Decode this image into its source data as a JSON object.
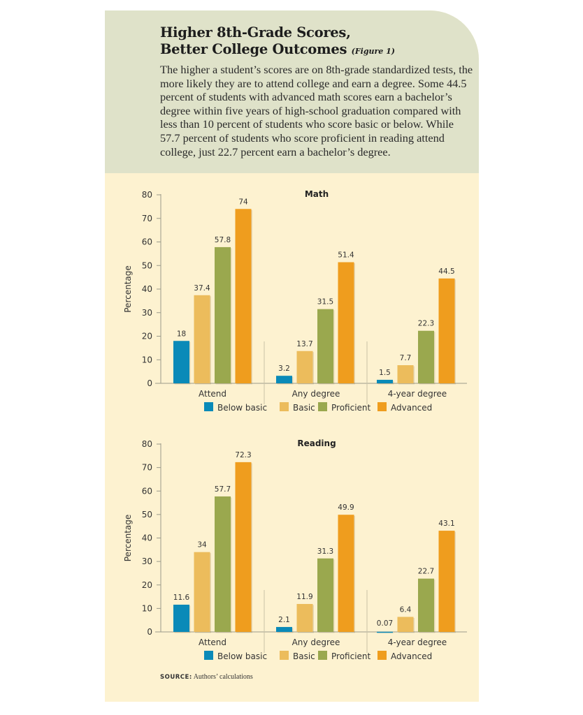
{
  "header": {
    "title_line1": "Higher 8th-Grade Scores,",
    "title_line2": "Better College Outcomes",
    "figure_label": "(Figure 1)",
    "description": "The higher a student’s scores are on 8th-grade standardized tests, the more likely they are to attend college and earn a degree. Some 44.5 percent of students with advanced math scores earn a bachelor’s degree within five years of high-school graduation compared with less than 10 percent of students who score basic or below. While 57.7 percent of students who score proficient in reading attend college, just 22.7 percent earn a bachelor’s degree."
  },
  "colors": {
    "header_bg": "#dfe2c9",
    "panel_bg": "#fdf2d0",
    "below_basic": "#0a8ab8",
    "basic": "#ecbc5c",
    "proficient": "#9aa84e",
    "advanced": "#ef9d1e"
  },
  "chart_data": [
    {
      "type": "bar",
      "title": "Math",
      "ylabel": "Percentage",
      "ylim": [
        0,
        80
      ],
      "yticks": [
        "0",
        "10",
        "20",
        "30",
        "40",
        "50",
        "60",
        "70",
        "80"
      ],
      "categories": [
        "Attend",
        "Any degree",
        "4-year degree"
      ],
      "legend_position": "bottom",
      "grid": false,
      "series": [
        {
          "name": "Below basic",
          "values": [
            18,
            3.2,
            1.5
          ],
          "labels": [
            "18",
            "3.2",
            "1.5"
          ]
        },
        {
          "name": "Basic",
          "values": [
            37.4,
            13.7,
            7.7
          ],
          "labels": [
            "37.4",
            "13.7",
            "7.7"
          ]
        },
        {
          "name": "Proficient",
          "values": [
            57.8,
            31.5,
            22.3
          ],
          "labels": [
            "57.8",
            "31.5",
            "22.3"
          ]
        },
        {
          "name": "Advanced",
          "values": [
            74,
            51.4,
            44.5
          ],
          "labels": [
            "74",
            "51.4",
            "44.5"
          ]
        }
      ]
    },
    {
      "type": "bar",
      "title": "Reading",
      "ylabel": "Percentage",
      "ylim": [
        0,
        80
      ],
      "yticks": [
        "0",
        "10",
        "20",
        "30",
        "40",
        "50",
        "60",
        "70",
        "80"
      ],
      "categories": [
        "Attend",
        "Any degree",
        "4-year degree"
      ],
      "legend_position": "bottom",
      "grid": false,
      "series": [
        {
          "name": "Below basic",
          "values": [
            11.6,
            2.1,
            0.07
          ],
          "labels": [
            "11.6",
            "2.1",
            "0.07"
          ]
        },
        {
          "name": "Basic",
          "values": [
            34,
            11.9,
            6.4
          ],
          "labels": [
            "34",
            "11.9",
            "6.4"
          ]
        },
        {
          "name": "Proficient",
          "values": [
            57.7,
            31.3,
            22.7
          ],
          "labels": [
            "57.7",
            "31.3",
            "22.7"
          ]
        },
        {
          "name": "Advanced",
          "values": [
            72.3,
            49.9,
            43.1
          ],
          "labels": [
            "72.3",
            "49.9",
            "43.1"
          ]
        }
      ]
    }
  ],
  "source": {
    "label": "SOURCE:",
    "text": "Authors’ calculations"
  }
}
